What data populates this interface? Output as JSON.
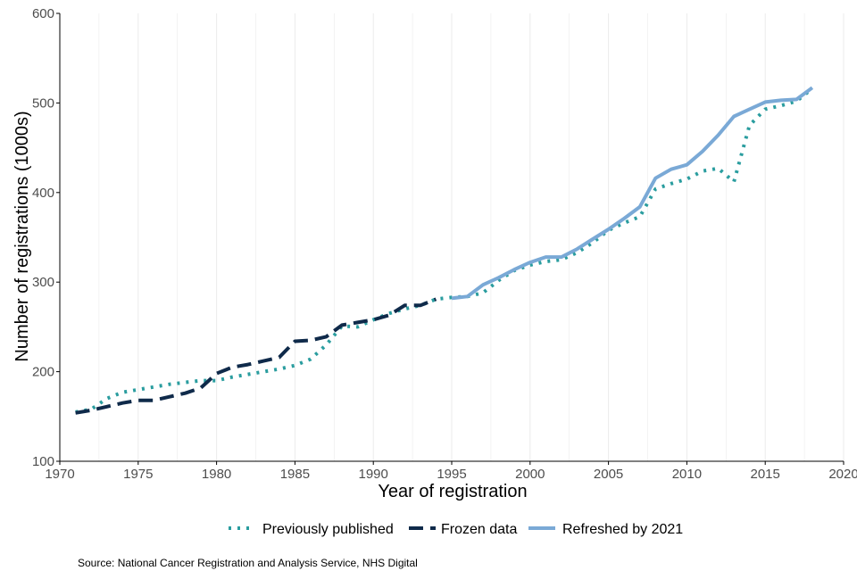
{
  "chart_data": {
    "type": "line",
    "xlabel": "Year of registration",
    "ylabel": "Number of registrations (1000s)",
    "xlim": [
      1970,
      2020
    ],
    "ylim": [
      100,
      600
    ],
    "xticks": [
      1970,
      1975,
      1980,
      1985,
      1990,
      1995,
      2000,
      2005,
      2010,
      2015,
      2020
    ],
    "yticks": [
      100,
      200,
      300,
      400,
      500,
      600
    ],
    "x_grid": true,
    "y_grid": false,
    "legend_position": "bottom",
    "series": [
      {
        "name": "Previously published",
        "style": "dotted",
        "color": "#2a9d9f",
        "x": [
          1971,
          1972,
          1973,
          1974,
          1975,
          1976,
          1977,
          1978,
          1979,
          1980,
          1981,
          1982,
          1983,
          1984,
          1985,
          1986,
          1987,
          1988,
          1989,
          1990,
          1991,
          1992,
          1993,
          1994,
          1995,
          1996,
          1997,
          1998,
          1999,
          2000,
          2001,
          2002,
          2003,
          2004,
          2005,
          2006,
          2007,
          2008,
          2009,
          2010,
          2011,
          2012,
          2013,
          2014,
          2015,
          2016,
          2017,
          2018
        ],
        "values": [
          155,
          158,
          170,
          177,
          180,
          183,
          186,
          188,
          190,
          190,
          194,
          197,
          200,
          203,
          207,
          214,
          230,
          251,
          250,
          258,
          265,
          270,
          274,
          281,
          283,
          284,
          288,
          302,
          313,
          319,
          323,
          325,
          333,
          344,
          358,
          366,
          373,
          404,
          410,
          415,
          424,
          427,
          412,
          475,
          493,
          497,
          502,
          516
        ]
      },
      {
        "name": "Frozen data",
        "style": "dashed",
        "color": "#0f2a4a",
        "x": [
          1971,
          1972,
          1973,
          1974,
          1975,
          1976,
          1977,
          1978,
          1979,
          1980,
          1981,
          1982,
          1983,
          1984,
          1985,
          1986,
          1987,
          1988,
          1989,
          1990,
          1991,
          1992,
          1993,
          1994
        ],
        "values": [
          154,
          157,
          161,
          165,
          168,
          168,
          172,
          176,
          182,
          198,
          205,
          208,
          212,
          216,
          234,
          235,
          239,
          252,
          255,
          258,
          263,
          274,
          274,
          281
        ]
      },
      {
        "name": "Refreshed by 2021",
        "style": "solid",
        "color": "#7aa9d6",
        "x": [
          1995,
          1996,
          1997,
          1998,
          1999,
          2000,
          2001,
          2002,
          2003,
          2004,
          2005,
          2006,
          2007,
          2008,
          2009,
          2010,
          2011,
          2012,
          2013,
          2014,
          2015,
          2016,
          2017,
          2018
        ],
        "values": [
          282,
          284,
          297,
          305,
          314,
          322,
          328,
          328,
          337,
          348,
          359,
          371,
          384,
          416,
          426,
          431,
          446,
          464,
          485,
          493,
          501,
          503,
          504,
          517
        ]
      }
    ]
  },
  "source": "Source: National Cancer Registration and Analysis Service, NHS Digital"
}
